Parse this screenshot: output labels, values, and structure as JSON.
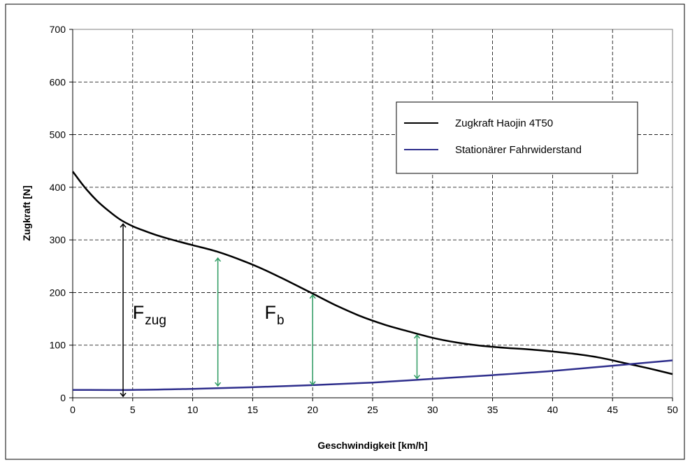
{
  "chart_data": {
    "type": "line",
    "title": "",
    "xlabel": "Geschwindigkeit  [km/h]",
    "ylabel": "Zugkraft  [N]",
    "xlim": [
      0,
      50
    ],
    "ylim": [
      0,
      700
    ],
    "xticks": [
      "0",
      "5",
      "10",
      "15",
      "20",
      "25",
      "30",
      "35",
      "40",
      "45",
      "50"
    ],
    "yticks": [
      "0",
      "100",
      "200",
      "300",
      "400",
      "500",
      "600",
      "700"
    ],
    "grid": true,
    "legend_position": "top-right",
    "series": [
      {
        "name": "Zugkraft Haojin 4T50",
        "color": "#000000",
        "x": [
          0,
          1,
          2,
          3,
          4,
          5,
          6,
          7,
          8,
          10,
          12,
          14,
          16,
          18,
          20,
          22,
          24,
          26,
          28,
          30,
          32,
          34,
          36,
          38,
          40,
          42,
          44,
          46,
          48,
          50
        ],
        "y": [
          430,
          400,
          375,
          355,
          338,
          326,
          317,
          309,
          302,
          290,
          278,
          262,
          243,
          221,
          198,
          175,
          155,
          139,
          126,
          114,
          105,
          99,
          95,
          92,
          88,
          83,
          76,
          66,
          56,
          45
        ]
      },
      {
        "name": "Stationärer Fahrwiderstand",
        "color": "#2e2e8c",
        "x": [
          0,
          5,
          10,
          15,
          20,
          25,
          30,
          35,
          40,
          45,
          50
        ],
        "y": [
          15,
          15,
          17,
          20,
          24,
          29,
          36,
          43,
          51,
          61,
          71
        ]
      }
    ],
    "annotations": {
      "force_arrows": [
        {
          "x": 4.2,
          "from": 0,
          "to": 333,
          "color": "#000000"
        },
        {
          "x": 12.1,
          "from": 20,
          "to": 268,
          "color": "#2e9a62"
        },
        {
          "x": 20.0,
          "from": 22,
          "to": 198,
          "color": "#2e9a62"
        },
        {
          "x": 28.7,
          "from": 34,
          "to": 122,
          "color": "#2e9a62"
        }
      ],
      "f_zug": {
        "main": "F",
        "sub": "zug",
        "x": 5.0,
        "y": 150
      },
      "f_b": {
        "main": "F",
        "sub": "b",
        "x": 16.0,
        "y": 150
      }
    }
  }
}
